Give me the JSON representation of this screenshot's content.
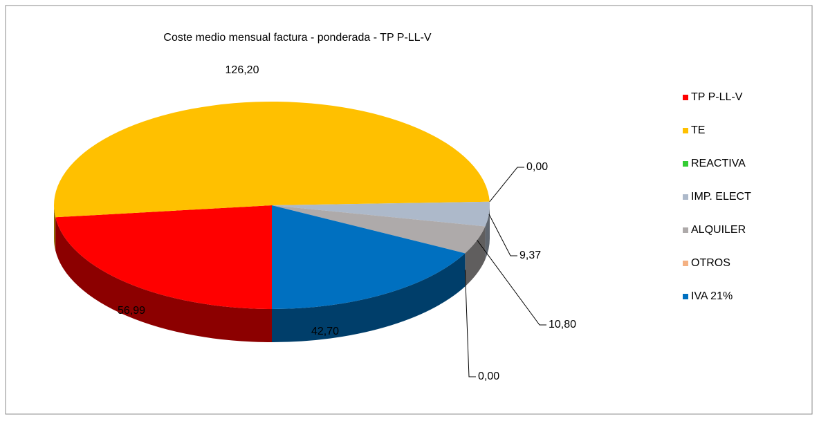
{
  "chart_data": {
    "type": "pie",
    "title": "Coste medio mensual factura - ponderada - TP P-LL-V",
    "categories": [
      "TP P-LL-V",
      "TE",
      "REACTIVA",
      "IMP. ELECT",
      "ALQUILER",
      "OTROS",
      "IVA 21%"
    ],
    "values": [
      56.99,
      126.2,
      0.0,
      9.37,
      10.8,
      0.0,
      42.7
    ],
    "value_labels": [
      "56,99",
      "126,20",
      "0,00",
      "9,37",
      "10,80",
      "0,00",
      "42,70"
    ],
    "colors": [
      "#ff0000",
      "#ffc000",
      "#33cc33",
      "#adb9ca",
      "#aeaaaa",
      "#f4b183",
      "#0070c0"
    ],
    "legend": "right"
  }
}
